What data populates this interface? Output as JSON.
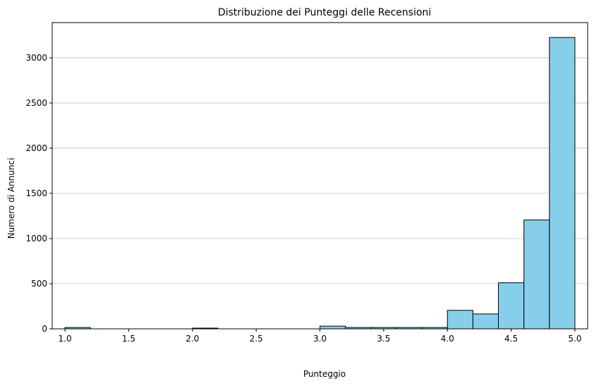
{
  "chart_data": {
    "type": "bar",
    "title": "Distribuzione dei Punteggi delle Recensioni",
    "xlabel": "Punteggio",
    "ylabel": "Numero di Annunci",
    "xlim": [
      0.9,
      5.1
    ],
    "ylim": [
      0,
      3390
    ],
    "x_ticks": [
      "1.0",
      "1.5",
      "2.0",
      "2.5",
      "3.0",
      "3.5",
      "4.0",
      "4.5",
      "5.0"
    ],
    "y_ticks": [
      "0",
      "500",
      "1000",
      "1500",
      "2000",
      "2500",
      "3000"
    ],
    "grid": "horizontal",
    "bar_color": "#87ceeb",
    "edge_color": "#000000",
    "bins": [
      {
        "x0": 1.0,
        "x1": 1.2,
        "value": 15
      },
      {
        "x0": 1.2,
        "x1": 1.4,
        "value": 0
      },
      {
        "x0": 1.4,
        "x1": 1.6,
        "value": 0
      },
      {
        "x0": 1.6,
        "x1": 1.8,
        "value": 0
      },
      {
        "x0": 1.8,
        "x1": 2.0,
        "value": 0
      },
      {
        "x0": 2.0,
        "x1": 2.2,
        "value": 8
      },
      {
        "x0": 2.2,
        "x1": 2.4,
        "value": 0
      },
      {
        "x0": 2.4,
        "x1": 2.6,
        "value": 0
      },
      {
        "x0": 2.6,
        "x1": 2.8,
        "value": 0
      },
      {
        "x0": 2.8,
        "x1": 3.0,
        "value": 0
      },
      {
        "x0": 3.0,
        "x1": 3.2,
        "value": 30
      },
      {
        "x0": 3.2,
        "x1": 3.4,
        "value": 15
      },
      {
        "x0": 3.4,
        "x1": 3.6,
        "value": 15
      },
      {
        "x0": 3.6,
        "x1": 3.8,
        "value": 15
      },
      {
        "x0": 3.8,
        "x1": 4.0,
        "value": 15
      },
      {
        "x0": 4.0,
        "x1": 4.2,
        "value": 205
      },
      {
        "x0": 4.2,
        "x1": 4.4,
        "value": 165
      },
      {
        "x0": 4.4,
        "x1": 4.6,
        "value": 510
      },
      {
        "x0": 4.6,
        "x1": 4.8,
        "value": 1205
      },
      {
        "x0": 4.8,
        "x1": 5.0,
        "value": 3225
      }
    ]
  }
}
